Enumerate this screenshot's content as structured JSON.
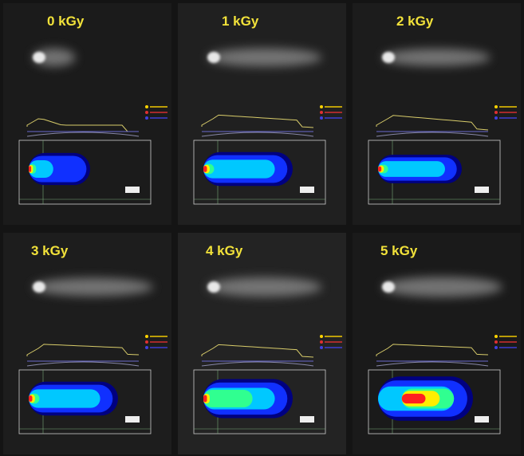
{
  "panels": [
    {
      "label": "0 kGy"
    },
    {
      "label": "1 kGy"
    },
    {
      "label": "2 kGy"
    },
    {
      "label": "3 kGy"
    },
    {
      "label": "4 kGy"
    },
    {
      "label": "5 kGy"
    }
  ]
}
